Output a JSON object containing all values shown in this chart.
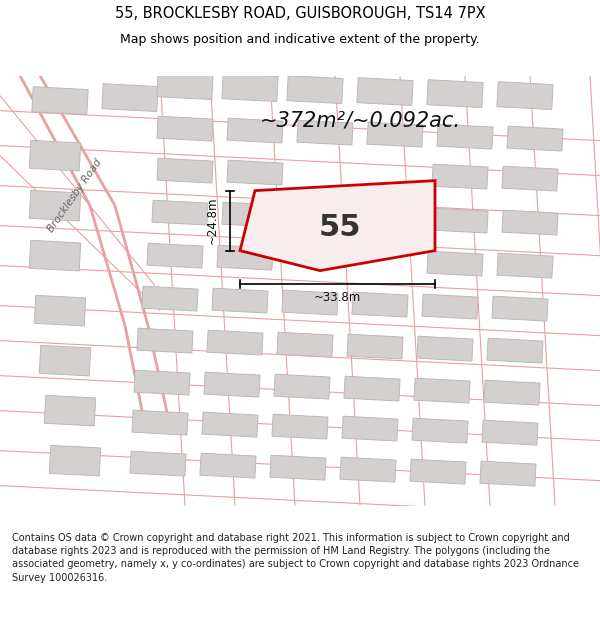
{
  "title": "55, BROCKLESBY ROAD, GUISBOROUGH, TS14 7PX",
  "subtitle": "Map shows position and indicative extent of the property.",
  "footer": "Contains OS data © Crown copyright and database right 2021. This information is subject to Crown copyright and database rights 2023 and is reproduced with the permission of HM Land Registry. The polygons (including the associated geometry, namely x, y co-ordinates) are subject to Crown copyright and database rights 2023 Ordnance Survey 100026316.",
  "area_text": "~372m²/~0.092ac.",
  "property_label": "55",
  "dim_width": "~33.8m",
  "dim_height": "~24.8m",
  "road_label": "Brocklesby Road",
  "map_bg": "#f2efef",
  "building_color": "#d4d0d0",
  "building_outline": "#bfb8b8",
  "road_line_color": "#e8a0a0",
  "property_fill": "#f7eded",
  "property_outline": "#cc0000",
  "title_fontsize": 10.5,
  "subtitle_fontsize": 9,
  "footer_fontsize": 7.0,
  "area_fontsize": 15,
  "label_fontsize": 22,
  "dim_fontsize": 8.5,
  "road_label_fontsize": 7.5
}
